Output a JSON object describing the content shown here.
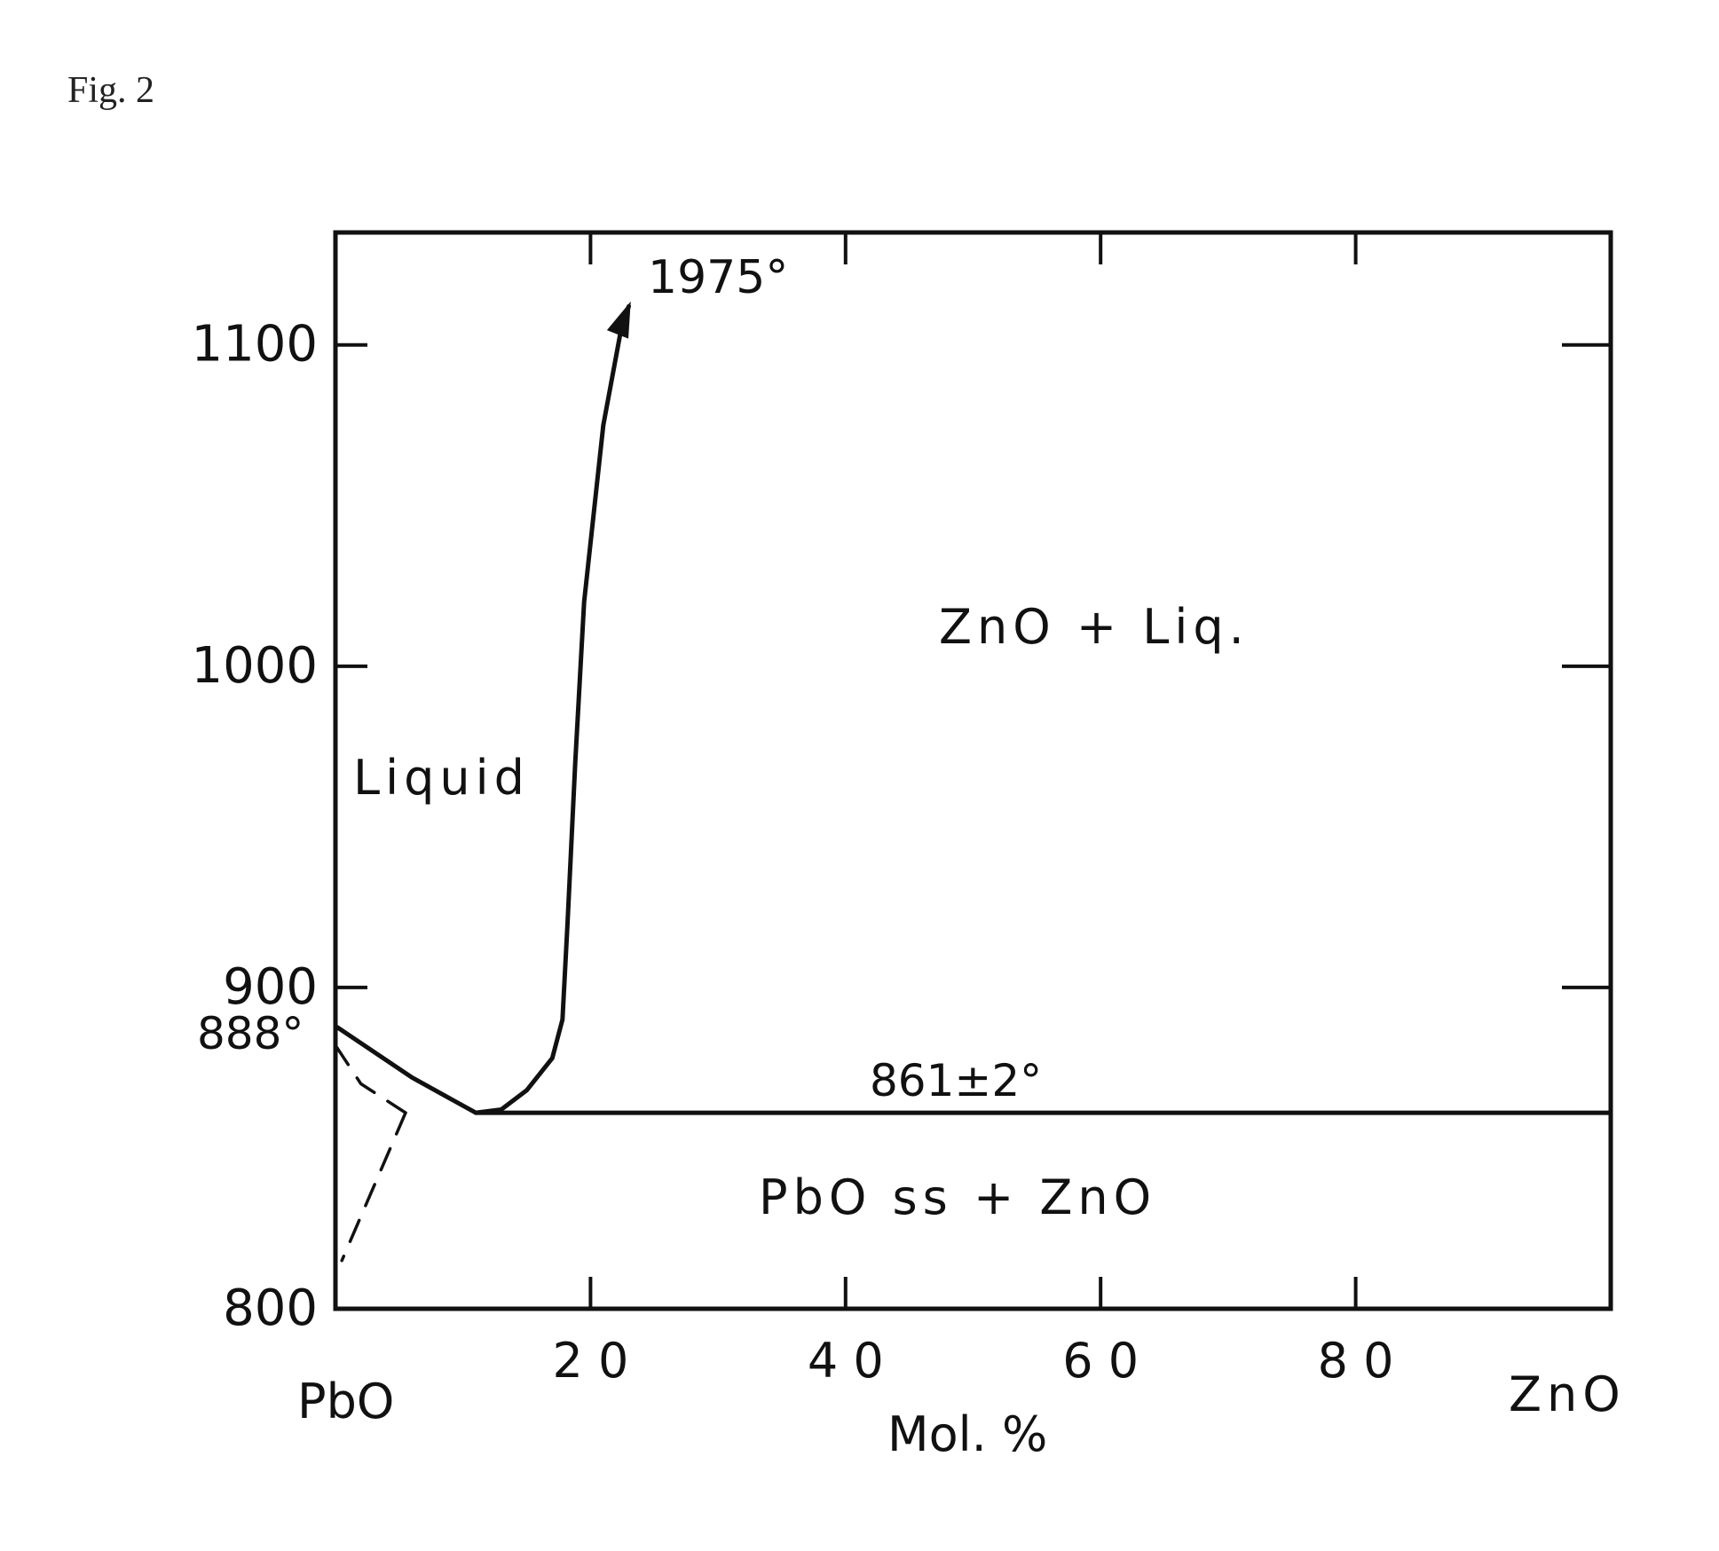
{
  "figure_label": "Fig. 2",
  "chart_data": {
    "type": "line",
    "title": "",
    "xlabel": "Mol. %",
    "ylabel": "",
    "xlim": [
      0,
      100
    ],
    "ylim": [
      800,
      1135
    ],
    "x_ticks": [
      20,
      40,
      60,
      80
    ],
    "x_tick_labels": [
      "2 0",
      "4 0",
      "6 0",
      "8 0"
    ],
    "y_ticks": [
      800,
      900,
      1000,
      1100
    ],
    "y_tick_labels": [
      "800",
      "900",
      "1000",
      "1100"
    ],
    "endmember_left": "PbO",
    "endmember_right": "ZnO",
    "grid": false,
    "series": [
      {
        "style": "solid",
        "x": [
          0,
          6,
          11,
          13,
          15,
          17,
          17.8,
          18.2,
          18.8,
          19.5,
          21,
          22.5,
          23
        ],
        "y": [
          888,
          872,
          861,
          862,
          868,
          878,
          890,
          920,
          970,
          1020,
          1075,
          1107,
          1112
        ]
      },
      {
        "style": "solid",
        "x": [
          11,
          100
        ],
        "y": [
          861,
          861
        ]
      },
      {
        "style": "dashed",
        "x": [
          0,
          2,
          5.5
        ],
        "y": [
          882,
          870,
          861
        ]
      },
      {
        "style": "dashed",
        "x": [
          5.5,
          0.5
        ],
        "y": [
          861,
          815
        ]
      }
    ],
    "annotations": {
      "top_temp": "1975°",
      "melting_point": "888°",
      "eutectic": "861±2°",
      "region_liquid": "Liquid",
      "region_zno_liq": "ZnO + Liq.",
      "region_solid": "PbO ss + ZnO"
    }
  }
}
